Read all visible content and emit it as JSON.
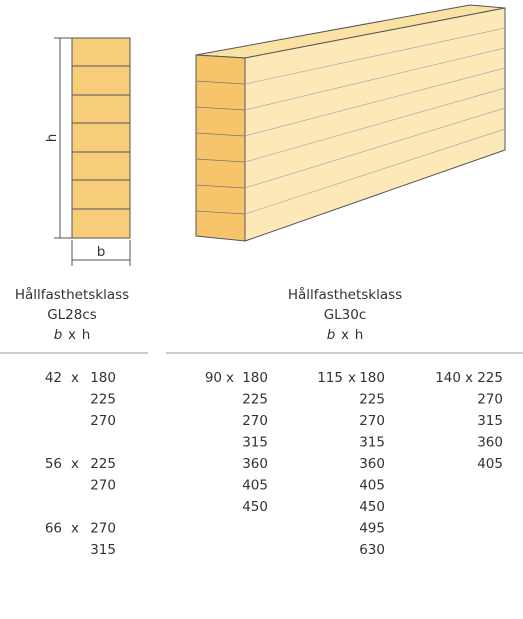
{
  "diagram": {
    "height_label": "h",
    "width_label": "b"
  },
  "left_table": {
    "header": {
      "title": "Hållfasthetsklass",
      "class": "GL28cs",
      "b": "b",
      "times": "x",
      "h": "h"
    },
    "groups": [
      {
        "b": 42,
        "h": [
          180,
          225,
          270
        ]
      },
      {
        "b": 56,
        "h": [
          225,
          270
        ]
      },
      {
        "b": 66,
        "h": [
          270,
          315
        ]
      }
    ]
  },
  "right_table": {
    "header": {
      "title": "Hållfasthetsklass",
      "class": "GL30c",
      "b": "b",
      "times": "x",
      "h": "h"
    },
    "columns": [
      {
        "b": 90,
        "h": [
          180,
          225,
          270,
          315,
          360,
          405,
          450
        ]
      },
      {
        "b": 115,
        "h": [
          180,
          225,
          270,
          315,
          360,
          405,
          450,
          495,
          630
        ]
      },
      {
        "b": 140,
        "h": [
          225,
          270,
          315,
          360,
          405
        ]
      }
    ]
  }
}
